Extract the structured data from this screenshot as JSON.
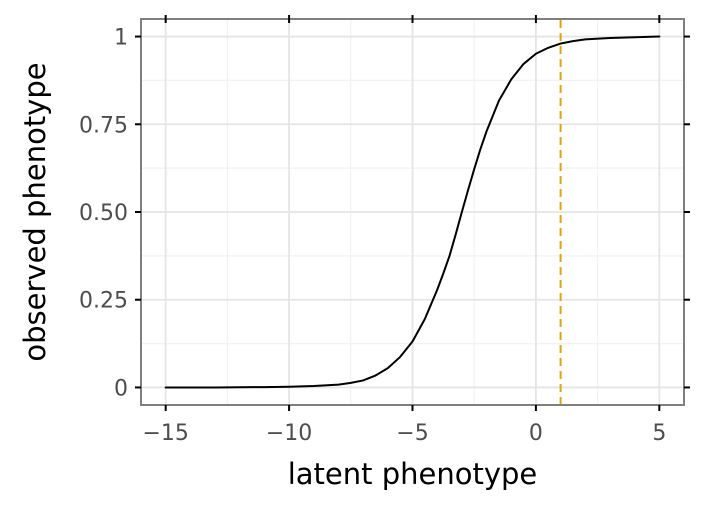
{
  "chart_data": {
    "type": "line",
    "title": "",
    "xlabel": "latent phenotype",
    "ylabel": "observed phenotype",
    "xlim": [
      -16,
      6
    ],
    "ylim": [
      -0.05,
      1.05
    ],
    "x_ticks": [
      -15,
      -10,
      -5,
      0,
      5
    ],
    "x_tick_labels": [
      "−15",
      "−10",
      "−5",
      "0",
      "5"
    ],
    "y_ticks": [
      0,
      0.25,
      0.5,
      0.75,
      1
    ],
    "y_tick_labels": [
      "0",
      "0.25",
      "0.50",
      "0.75",
      "1"
    ],
    "grid": true,
    "legend": "none",
    "series": [
      {
        "style": "solid",
        "color": "#000000",
        "x": [
          -15,
          -14,
          -13,
          -12,
          -11,
          -10,
          -9,
          -8,
          -7.5,
          -7,
          -6.5,
          -6,
          -5.5,
          -5,
          -4.5,
          -4,
          -3.75,
          -3.5,
          -3.25,
          -3,
          -2.75,
          -2.5,
          -2.25,
          -2,
          -1.5,
          -1,
          -0.5,
          0,
          0.5,
          1,
          1.5,
          2,
          3,
          4,
          5
        ],
        "y": [
          0,
          0,
          0,
          0.0005,
          0.001,
          0.002,
          0.004,
          0.008,
          0.013,
          0.02,
          0.034,
          0.055,
          0.087,
          0.131,
          0.195,
          0.278,
          0.325,
          0.375,
          0.436,
          0.5,
          0.562,
          0.622,
          0.679,
          0.73,
          0.817,
          0.878,
          0.922,
          0.951,
          0.968,
          0.98,
          0.987,
          0.992,
          0.996,
          0.998,
          1.0
        ]
      },
      {
        "style": "dashed",
        "color": "#e2a40b",
        "orientation": "vertical",
        "x": [
          1,
          1
        ],
        "y": [
          -0.05,
          1.05
        ]
      }
    ]
  }
}
